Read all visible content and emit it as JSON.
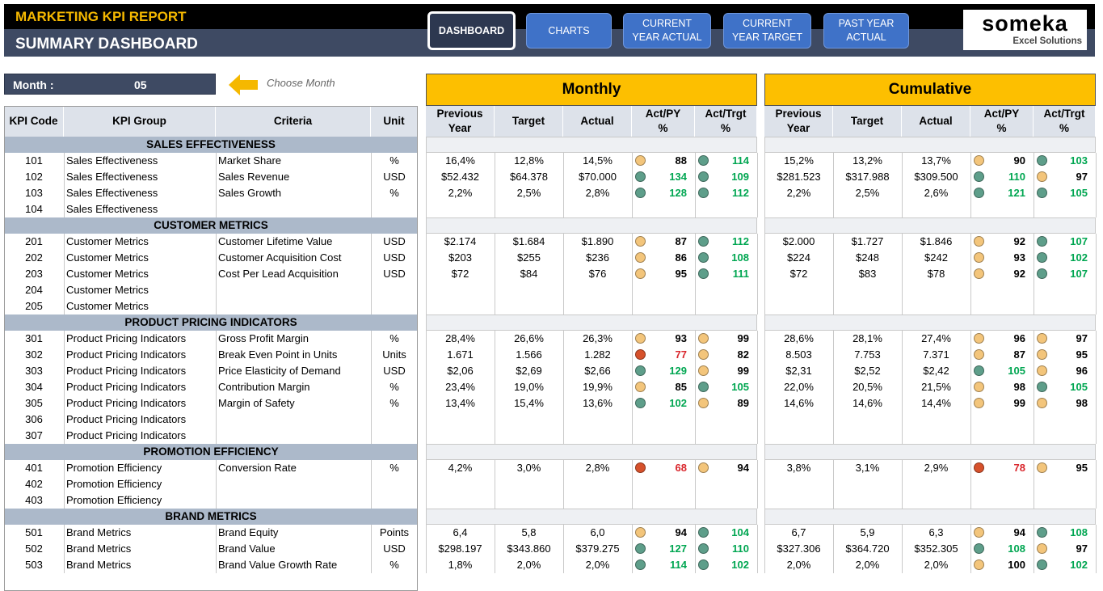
{
  "header": {
    "title": "MARKETING KPI REPORT",
    "subtitle": "SUMMARY DASHBOARD",
    "nav": [
      "DASHBOARD",
      "CHARTS",
      "CURRENT YEAR ACTUAL",
      "CURRENT YEAR TARGET",
      "PAST YEAR ACTUAL"
    ],
    "logo": {
      "name": "someka",
      "tagline": "Excel Solutions"
    }
  },
  "month": {
    "label": "Month :",
    "value": "05",
    "hint": "Choose Month"
  },
  "left_columns": [
    "KPI Code",
    "KPI Group",
    "Criteria",
    "Unit"
  ],
  "panels": [
    {
      "title": "Monthly"
    },
    {
      "title": "Cumulative"
    }
  ],
  "panel_columns": [
    "Previous\nYear",
    "Target",
    "Actual",
    "Act/PY\n%",
    "Act/Trgt\n%"
  ],
  "sections": [
    {
      "title": "SALES EFFECTIVENESS",
      "rows": [
        {
          "code": "101",
          "group": "Sales Effectiveness",
          "criteria": "Market Share",
          "unit": "%",
          "monthly": {
            "previous_year": "16,4%",
            "target": "12,8%",
            "actual": "14,5%",
            "act_py": {
              "value": 88,
              "color": "#f3c57b",
              "text_color": "#000000"
            },
            "act_trgt": {
              "value": 114,
              "color": "#5e9e8a",
              "text_color": "#00a651"
            }
          },
          "cumulative": {
            "previous_year": "15,2%",
            "target": "13,2%",
            "actual": "13,7%",
            "act_py": {
              "value": 90,
              "color": "#f3c57b",
              "text_color": "#000000"
            },
            "act_trgt": {
              "value": 103,
              "color": "#5e9e8a",
              "text_color": "#00a651"
            }
          }
        },
        {
          "code": "102",
          "group": "Sales Effectiveness",
          "criteria": "Sales Revenue",
          "unit": "USD",
          "monthly": {
            "previous_year": "$52.432",
            "target": "$64.378",
            "actual": "$70.000",
            "act_py": {
              "value": 134,
              "color": "#5e9e8a",
              "text_color": "#00a651"
            },
            "act_trgt": {
              "value": 109,
              "color": "#5e9e8a",
              "text_color": "#00a651"
            }
          },
          "cumulative": {
            "previous_year": "$281.523",
            "target": "$317.988",
            "actual": "$309.500",
            "act_py": {
              "value": 110,
              "color": "#5e9e8a",
              "text_color": "#00a651"
            },
            "act_trgt": {
              "value": 97,
              "color": "#f3c57b",
              "text_color": "#000000"
            }
          }
        },
        {
          "code": "103",
          "group": "Sales Effectiveness",
          "criteria": "Sales Growth",
          "unit": "%",
          "monthly": {
            "previous_year": "2,2%",
            "target": "2,5%",
            "actual": "2,8%",
            "act_py": {
              "value": 128,
              "color": "#5e9e8a",
              "text_color": "#00a651"
            },
            "act_trgt": {
              "value": 112,
              "color": "#5e9e8a",
              "text_color": "#00a651"
            }
          },
          "cumulative": {
            "previous_year": "2,2%",
            "target": "2,5%",
            "actual": "2,6%",
            "act_py": {
              "value": 121,
              "color": "#5e9e8a",
              "text_color": "#00a651"
            },
            "act_trgt": {
              "value": 105,
              "color": "#5e9e8a",
              "text_color": "#00a651"
            }
          }
        },
        {
          "code": "104",
          "group": "Sales Effectiveness"
        }
      ]
    },
    {
      "title": "CUSTOMER METRICS",
      "rows": [
        {
          "code": "201",
          "group": "Customer Metrics",
          "criteria": "Customer Lifetime Value",
          "unit": "USD",
          "monthly": {
            "previous_year": "$2.174",
            "target": "$1.684",
            "actual": "$1.890",
            "act_py": {
              "value": 87,
              "color": "#f3c57b",
              "text_color": "#000000"
            },
            "act_trgt": {
              "value": 112,
              "color": "#5e9e8a",
              "text_color": "#00a651"
            }
          },
          "cumulative": {
            "previous_year": "$2.000",
            "target": "$1.727",
            "actual": "$1.846",
            "act_py": {
              "value": 92,
              "color": "#f3c57b",
              "text_color": "#000000"
            },
            "act_trgt": {
              "value": 107,
              "color": "#5e9e8a",
              "text_color": "#00a651"
            }
          }
        },
        {
          "code": "202",
          "group": "Customer Metrics",
          "criteria": "Customer Acquisition Cost",
          "unit": "USD",
          "monthly": {
            "previous_year": "$203",
            "target": "$255",
            "actual": "$236",
            "act_py": {
              "value": 86,
              "color": "#f3c57b",
              "text_color": "#000000"
            },
            "act_trgt": {
              "value": 108,
              "color": "#5e9e8a",
              "text_color": "#00a651"
            }
          },
          "cumulative": {
            "previous_year": "$224",
            "target": "$248",
            "actual": "$242",
            "act_py": {
              "value": 93,
              "color": "#f3c57b",
              "text_color": "#000000"
            },
            "act_trgt": {
              "value": 102,
              "color": "#5e9e8a",
              "text_color": "#00a651"
            }
          }
        },
        {
          "code": "203",
          "group": "Customer Metrics",
          "criteria": "Cost Per Lead Acquisition",
          "unit": "USD",
          "monthly": {
            "previous_year": "$72",
            "target": "$84",
            "actual": "$76",
            "act_py": {
              "value": 95,
              "color": "#f3c57b",
              "text_color": "#000000"
            },
            "act_trgt": {
              "value": 111,
              "color": "#5e9e8a",
              "text_color": "#00a651"
            }
          },
          "cumulative": {
            "previous_year": "$72",
            "target": "$83",
            "actual": "$78",
            "act_py": {
              "value": 92,
              "color": "#f3c57b",
              "text_color": "#000000"
            },
            "act_trgt": {
              "value": 107,
              "color": "#5e9e8a",
              "text_color": "#00a651"
            }
          }
        },
        {
          "code": "204",
          "group": "Customer Metrics"
        },
        {
          "code": "205",
          "group": "Customer Metrics"
        }
      ]
    },
    {
      "title": "PRODUCT PRICING INDICATORS",
      "rows": [
        {
          "code": "301",
          "group": "Product Pricing Indicators",
          "criteria": "Gross Profit Margin",
          "unit": "%",
          "monthly": {
            "previous_year": "28,4%",
            "target": "26,6%",
            "actual": "26,3%",
            "act_py": {
              "value": 93,
              "color": "#f3c57b",
              "text_color": "#000000"
            },
            "act_trgt": {
              "value": 99,
              "color": "#f3c57b",
              "text_color": "#000000"
            }
          },
          "cumulative": {
            "previous_year": "28,6%",
            "target": "28,1%",
            "actual": "27,4%",
            "act_py": {
              "value": 96,
              "color": "#f3c57b",
              "text_color": "#000000"
            },
            "act_trgt": {
              "value": 97,
              "color": "#f3c57b",
              "text_color": "#000000"
            }
          }
        },
        {
          "code": "302",
          "group": "Product Pricing Indicators",
          "criteria": "Break Even Point in Units",
          "unit": "Units",
          "monthly": {
            "previous_year": "1.671",
            "target": "1.566",
            "actual": "1.282",
            "act_py": {
              "value": 77,
              "color": "#d6512b",
              "text_color": "#d9262c"
            },
            "act_trgt": {
              "value": 82,
              "color": "#f3c57b",
              "text_color": "#000000"
            }
          },
          "cumulative": {
            "previous_year": "8.503",
            "target": "7.753",
            "actual": "7.371",
            "act_py": {
              "value": 87,
              "color": "#f3c57b",
              "text_color": "#000000"
            },
            "act_trgt": {
              "value": 95,
              "color": "#f3c57b",
              "text_color": "#000000"
            }
          }
        },
        {
          "code": "303",
          "group": "Product Pricing Indicators",
          "criteria": "Price Elasticity of Demand",
          "unit": "USD",
          "monthly": {
            "previous_year": "$2,06",
            "target": "$2,69",
            "actual": "$2,66",
            "act_py": {
              "value": 129,
              "color": "#5e9e8a",
              "text_color": "#00a651"
            },
            "act_trgt": {
              "value": 99,
              "color": "#f3c57b",
              "text_color": "#000000"
            }
          },
          "cumulative": {
            "previous_year": "$2,31",
            "target": "$2,52",
            "actual": "$2,42",
            "act_py": {
              "value": 105,
              "color": "#5e9e8a",
              "text_color": "#00a651"
            },
            "act_trgt": {
              "value": 96,
              "color": "#f3c57b",
              "text_color": "#000000"
            }
          }
        },
        {
          "code": "304",
          "group": "Product Pricing Indicators",
          "criteria": "Contribution Margin",
          "unit": "%",
          "monthly": {
            "previous_year": "23,4%",
            "target": "19,0%",
            "actual": "19,9%",
            "act_py": {
              "value": 85,
              "color": "#f3c57b",
              "text_color": "#000000"
            },
            "act_trgt": {
              "value": 105,
              "color": "#5e9e8a",
              "text_color": "#00a651"
            }
          },
          "cumulative": {
            "previous_year": "22,0%",
            "target": "20,5%",
            "actual": "21,5%",
            "act_py": {
              "value": 98,
              "color": "#f3c57b",
              "text_color": "#000000"
            },
            "act_trgt": {
              "value": 105,
              "color": "#5e9e8a",
              "text_color": "#00a651"
            }
          }
        },
        {
          "code": "305",
          "group": "Product Pricing Indicators",
          "criteria": "Margin of Safety",
          "unit": "%",
          "monthly": {
            "previous_year": "13,4%",
            "target": "15,4%",
            "actual": "13,6%",
            "act_py": {
              "value": 102,
              "color": "#5e9e8a",
              "text_color": "#00a651"
            },
            "act_trgt": {
              "value": 89,
              "color": "#f3c57b",
              "text_color": "#000000"
            }
          },
          "cumulative": {
            "previous_year": "14,6%",
            "target": "14,6%",
            "actual": "14,4%",
            "act_py": {
              "value": 99,
              "color": "#f3c57b",
              "text_color": "#000000"
            },
            "act_trgt": {
              "value": 98,
              "color": "#f3c57b",
              "text_color": "#000000"
            }
          }
        },
        {
          "code": "306",
          "group": "Product Pricing Indicators"
        },
        {
          "code": "307",
          "group": "Product Pricing Indicators"
        }
      ]
    },
    {
      "title": "PROMOTION EFFICIENCY",
      "rows": [
        {
          "code": "401",
          "group": "Promotion Efficiency",
          "criteria": "Conversion Rate",
          "unit": "%",
          "monthly": {
            "previous_year": "4,2%",
            "target": "3,0%",
            "actual": "2,8%",
            "act_py": {
              "value": 68,
              "color": "#d6512b",
              "text_color": "#d9262c"
            },
            "act_trgt": {
              "value": 94,
              "color": "#f3c57b",
              "text_color": "#000000"
            }
          },
          "cumulative": {
            "previous_year": "3,8%",
            "target": "3,1%",
            "actual": "2,9%",
            "act_py": {
              "value": 78,
              "color": "#d6512b",
              "text_color": "#d9262c"
            },
            "act_trgt": {
              "value": 95,
              "color": "#f3c57b",
              "text_color": "#000000"
            }
          }
        },
        {
          "code": "402",
          "group": "Promotion Efficiency"
        },
        {
          "code": "403",
          "group": "Promotion Efficiency"
        }
      ]
    },
    {
      "title": "BRAND METRICS",
      "rows": [
        {
          "code": "501",
          "group": "Brand Metrics",
          "criteria": "Brand Equity",
          "unit": "Points",
          "monthly": {
            "previous_year": "6,4",
            "target": "5,8",
            "actual": "6,0",
            "act_py": {
              "value": 94,
              "color": "#f3c57b",
              "text_color": "#000000"
            },
            "act_trgt": {
              "value": 104,
              "color": "#5e9e8a",
              "text_color": "#00a651"
            }
          },
          "cumulative": {
            "previous_year": "6,7",
            "target": "5,9",
            "actual": "6,3",
            "act_py": {
              "value": 94,
              "color": "#f3c57b",
              "text_color": "#000000"
            },
            "act_trgt": {
              "value": 108,
              "color": "#5e9e8a",
              "text_color": "#00a651"
            }
          }
        },
        {
          "code": "502",
          "group": "Brand Metrics",
          "criteria": "Brand Value",
          "unit": "USD",
          "monthly": {
            "previous_year": "$298.197",
            "target": "$343.860",
            "actual": "$379.275",
            "act_py": {
              "value": 127,
              "color": "#5e9e8a",
              "text_color": "#00a651"
            },
            "act_trgt": {
              "value": 110,
              "color": "#5e9e8a",
              "text_color": "#00a651"
            }
          },
          "cumulative": {
            "previous_year": "$327.306",
            "target": "$364.720",
            "actual": "$352.305",
            "act_py": {
              "value": 108,
              "color": "#5e9e8a",
              "text_color": "#00a651"
            },
            "act_trgt": {
              "value": 97,
              "color": "#f3c57b",
              "text_color": "#000000"
            }
          }
        },
        {
          "code": "503",
          "group": "Brand Metrics",
          "criteria": "Brand Value Growth Rate",
          "unit": "%",
          "monthly": {
            "previous_year": "1,8%",
            "target": "2,0%",
            "actual": "2,0%",
            "act_py": {
              "value": 114,
              "color": "#5e9e8a",
              "text_color": "#00a651"
            },
            "act_trgt": {
              "value": 102,
              "color": "#5e9e8a",
              "text_color": "#00a651"
            }
          },
          "cumulative": {
            "previous_year": "2,0%",
            "target": "2,0%",
            "actual": "2,0%",
            "act_py": {
              "value": 100,
              "color": "#f3c57b",
              "text_color": "#000000"
            },
            "act_trgt": {
              "value": 102,
              "color": "#5e9e8a",
              "text_color": "#00a651"
            }
          }
        }
      ]
    }
  ]
}
